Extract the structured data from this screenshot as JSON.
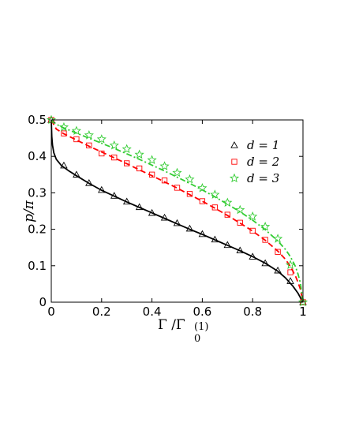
{
  "chart_data": {
    "type": "line",
    "xlabel": "Γ /Γ̄ 0 (1)",
    "xlabel_parts": {
      "main": "Γ /Γ̄",
      "sub": "0",
      "sup": "(1)"
    },
    "ylabel": "p/π",
    "xlim": [
      0,
      1
    ],
    "ylim": [
      0,
      0.5
    ],
    "xticks": [
      0,
      0.2,
      0.4,
      0.6,
      0.8,
      1
    ],
    "xtick_labels": [
      "0",
      "0.2",
      "0.4",
      "0.6",
      "0.8",
      "1"
    ],
    "yticks": [
      0,
      0.1,
      0.2,
      0.3,
      0.4,
      0.5
    ],
    "ytick_labels": [
      "0",
      "0.1",
      "0.2",
      "0.3",
      "0.4",
      "0.5"
    ],
    "grid": false,
    "legend_position": "top-right",
    "series": [
      {
        "name": "d = 1",
        "legend_text": "d = 1",
        "color": "#000000",
        "line_style": "solid",
        "marker": "triangle",
        "line": {
          "x": [
            0,
            0.002,
            0.005,
            0.01,
            0.02,
            0.04,
            0.07,
            0.1,
            0.15,
            0.2,
            0.25,
            0.3,
            0.35,
            0.4,
            0.45,
            0.5,
            0.55,
            0.6,
            0.65,
            0.7,
            0.75,
            0.8,
            0.85,
            0.9,
            0.93,
            0.96,
            0.98,
            0.99,
            1.0
          ],
          "y": [
            0.5,
            0.455,
            0.43,
            0.41,
            0.392,
            0.375,
            0.36,
            0.347,
            0.326,
            0.307,
            0.291,
            0.275,
            0.26,
            0.245,
            0.23,
            0.215,
            0.2,
            0.186,
            0.171,
            0.156,
            0.141,
            0.125,
            0.107,
            0.085,
            0.067,
            0.044,
            0.025,
            0.012,
            0.0
          ]
        },
        "markers": {
          "x": [
            0,
            0.05,
            0.1,
            0.15,
            0.2,
            0.25,
            0.3,
            0.35,
            0.4,
            0.45,
            0.5,
            0.55,
            0.6,
            0.65,
            0.7,
            0.75,
            0.8,
            0.85,
            0.9,
            0.95,
            1.0
          ],
          "y": [
            0.5,
            0.375,
            0.35,
            0.327,
            0.308,
            0.292,
            0.276,
            0.261,
            0.245,
            0.232,
            0.217,
            0.202,
            0.187,
            0.172,
            0.157,
            0.142,
            0.125,
            0.107,
            0.087,
            0.058,
            0.0
          ]
        }
      },
      {
        "name": "d = 2",
        "legend_text": "d = 2",
        "color": "#ff0000",
        "line_style": "dashed",
        "marker": "square",
        "line": {
          "x": [
            0,
            0.02,
            0.05,
            0.1,
            0.15,
            0.2,
            0.25,
            0.3,
            0.35,
            0.4,
            0.45,
            0.5,
            0.55,
            0.6,
            0.65,
            0.7,
            0.75,
            0.8,
            0.85,
            0.9,
            0.93,
            0.95,
            0.97,
            0.98,
            0.99,
            1.0
          ],
          "y": [
            0.5,
            0.475,
            0.462,
            0.445,
            0.428,
            0.412,
            0.396,
            0.38,
            0.363,
            0.347,
            0.33,
            0.313,
            0.295,
            0.277,
            0.258,
            0.238,
            0.217,
            0.195,
            0.17,
            0.14,
            0.118,
            0.098,
            0.072,
            0.055,
            0.035,
            0.0
          ]
        },
        "markers": {
          "x": [
            0,
            0.05,
            0.1,
            0.15,
            0.2,
            0.25,
            0.3,
            0.35,
            0.4,
            0.45,
            0.5,
            0.55,
            0.6,
            0.65,
            0.7,
            0.75,
            0.8,
            0.85,
            0.9,
            0.95,
            1.0
          ],
          "y": [
            0.5,
            0.463,
            0.447,
            0.43,
            0.408,
            0.397,
            0.381,
            0.367,
            0.35,
            0.334,
            0.314,
            0.297,
            0.277,
            0.26,
            0.24,
            0.218,
            0.196,
            0.171,
            0.138,
            0.082,
            0.0
          ]
        }
      },
      {
        "name": "d = 3",
        "legend_text": "d = 3",
        "color": "#33cc33",
        "line_style": "dashdot",
        "marker": "star",
        "line": {
          "x": [
            0,
            0.02,
            0.05,
            0.1,
            0.15,
            0.2,
            0.25,
            0.3,
            0.35,
            0.4,
            0.45,
            0.5,
            0.55,
            0.6,
            0.65,
            0.7,
            0.75,
            0.8,
            0.85,
            0.9,
            0.93,
            0.95,
            0.97,
            0.98,
            0.99,
            1.0
          ],
          "y": [
            0.5,
            0.488,
            0.478,
            0.464,
            0.45,
            0.436,
            0.422,
            0.407,
            0.392,
            0.376,
            0.36,
            0.343,
            0.326,
            0.308,
            0.289,
            0.269,
            0.248,
            0.225,
            0.199,
            0.168,
            0.145,
            0.125,
            0.098,
            0.078,
            0.052,
            0.0
          ]
        },
        "markers": {
          "x": [
            0,
            0.05,
            0.1,
            0.15,
            0.2,
            0.25,
            0.3,
            0.35,
            0.4,
            0.45,
            0.5,
            0.55,
            0.6,
            0.65,
            0.7,
            0.75,
            0.8,
            0.85,
            0.9,
            0.95,
            1.0
          ],
          "y": [
            0.5,
            0.48,
            0.47,
            0.458,
            0.447,
            0.43,
            0.42,
            0.405,
            0.39,
            0.373,
            0.355,
            0.337,
            0.313,
            0.295,
            0.273,
            0.253,
            0.235,
            0.207,
            0.174,
            0.102,
            0.0
          ]
        }
      }
    ]
  }
}
